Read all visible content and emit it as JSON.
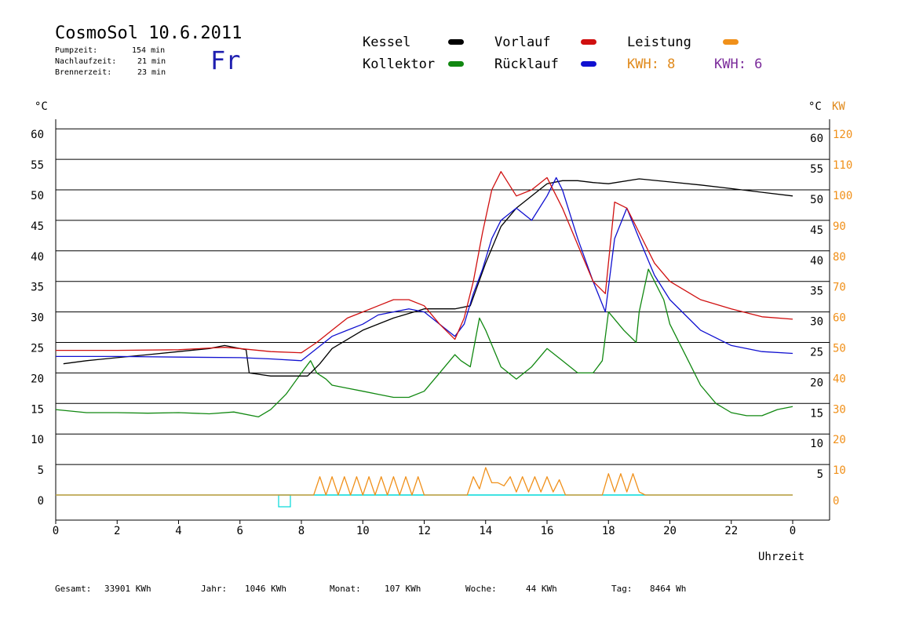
{
  "header": {
    "title": "CosmoSol 10.6.2011",
    "pumpzeit_label": "Pumpzeit:",
    "pumpzeit_value": "154 min",
    "nachlaufzeit_label": "Nachlaufzeit:",
    "nachlaufzeit_value": "21 min",
    "brennerzeit_label": "Brennerzeit:",
    "brennerzeit_value": "23 min",
    "day": "Fr"
  },
  "legend": {
    "kessel": "Kessel",
    "kollektor": "Kollektor",
    "vorlauf": "Vorlauf",
    "ruecklauf": "Rücklauf",
    "leistung": "Leistung",
    "kwh_orange": "KWH: 8",
    "kwh_purple": "KWH: 6"
  },
  "colors": {
    "kessel": "#000000",
    "kollektor": "#118811",
    "vorlauf": "#d01010",
    "ruecklauf": "#1010d0",
    "leistung": "#f0901a",
    "purple": "#7a2a9a",
    "baseline": "#00d8d8"
  },
  "axes": {
    "left_unit": "°C",
    "right_unit": "°C",
    "right_unit2": "KW",
    "xlabel": "Uhrzeit"
  },
  "footer": {
    "gesamt_label": "Gesamt:",
    "gesamt_value": "33901 KWh",
    "jahr_label": "Jahr:",
    "jahr_value": "1046 KWh",
    "monat_label": "Monat:",
    "monat_value": "107 KWh",
    "woche_label": "Woche:",
    "woche_value": "44 KWh",
    "tag_label": "Tag:",
    "tag_value": "8464 Wh"
  },
  "chart_data": {
    "type": "line",
    "xlim": [
      0,
      24
    ],
    "ylim": [
      0,
      60
    ],
    "xticks": [
      "0",
      "2",
      "4",
      "6",
      "8",
      "10",
      "12",
      "14",
      "16",
      "18",
      "20",
      "22",
      "0"
    ],
    "yticks_left": [
      "0",
      "5",
      "10",
      "15",
      "20",
      "25",
      "30",
      "35",
      "40",
      "45",
      "50",
      "55",
      "60"
    ],
    "yticks_right_c": [
      "5",
      "10",
      "15",
      "20",
      "25",
      "30",
      "35",
      "40",
      "45",
      "50",
      "55",
      "60"
    ],
    "yticks_right_kw": [
      "0",
      "10",
      "20",
      "30",
      "40",
      "50",
      "60",
      "70",
      "80",
      "90",
      "100",
      "110",
      "120"
    ],
    "grid": true,
    "series": [
      {
        "name": "Kessel",
        "color_key": "kessel",
        "x": [
          0.25,
          1,
          2,
          3,
          4,
          5,
          5.5,
          6.2,
          6.3,
          7,
          7.5,
          8.2,
          8.4,
          8.6,
          9,
          10,
          11,
          12,
          13,
          13.5,
          14,
          14.5,
          15,
          15.5,
          16,
          16.5,
          17,
          17.5,
          18,
          19,
          20,
          21,
          22,
          23,
          24
        ],
        "y": [
          21.5,
          22,
          22.5,
          23,
          23.5,
          24,
          24.5,
          23.8,
          20,
          19.5,
          19.5,
          19.5,
          20.5,
          21.5,
          24,
          27,
          29,
          30.5,
          30.5,
          31,
          38,
          44,
          47,
          49,
          51,
          51.5,
          51.5,
          51.2,
          51,
          51.8,
          51.3,
          50.8,
          50.2,
          49.6,
          49
        ]
      },
      {
        "name": "Kollektor",
        "color_key": "kollektor",
        "x": [
          0,
          1,
          2,
          3,
          4,
          5,
          5.8,
          6.6,
          7,
          7.5,
          8,
          8.3,
          8.5,
          8.8,
          9,
          9.5,
          10,
          10.5,
          11,
          11.5,
          12,
          12.5,
          13,
          13.2,
          13.5,
          13.8,
          14,
          14.5,
          15,
          15.5,
          16,
          16.5,
          17,
          17.5,
          17.8,
          18,
          18.5,
          18.9,
          19,
          19.3,
          19.8,
          20,
          20.5,
          21,
          21.5,
          22,
          22.5,
          23,
          23.5,
          24
        ],
        "y": [
          14,
          13.5,
          13.5,
          13.4,
          13.5,
          13.3,
          13.6,
          12.8,
          14,
          16.5,
          20,
          22,
          20,
          19,
          18,
          17.5,
          17,
          16.5,
          16,
          16,
          17,
          20,
          23,
          22,
          21,
          29,
          27,
          21,
          19,
          21,
          24,
          22,
          20,
          20,
          22,
          30,
          27,
          25,
          30,
          37,
          32,
          28,
          23,
          18,
          15,
          13.5,
          13,
          13,
          14,
          14.5
        ]
      },
      {
        "name": "Vorlauf",
        "color_key": "vorlauf",
        "x": [
          0,
          2,
          4,
          5.5,
          6,
          7,
          8,
          8.5,
          9,
          9.5,
          10,
          10.5,
          11,
          11.5,
          12,
          12.5,
          13,
          13.3,
          13.6,
          13.9,
          14.2,
          14.5,
          15,
          15.5,
          16,
          16.5,
          17,
          17.5,
          17.9,
          18.2,
          18.6,
          19,
          19.5,
          20,
          21,
          22,
          23,
          24
        ],
        "y": [
          23.7,
          23.7,
          23.8,
          24.2,
          24,
          23.5,
          23.3,
          25,
          27,
          29,
          30,
          31,
          32,
          32,
          31,
          28,
          25.5,
          29,
          35,
          43,
          50,
          53,
          49,
          50,
          52,
          47,
          41,
          35,
          33,
          48,
          47,
          43,
          38,
          35,
          32,
          30.5,
          29.2,
          28.8
        ]
      },
      {
        "name": "Rücklauf",
        "color_key": "ruecklauf",
        "x": [
          0,
          2,
          4,
          6,
          7,
          8,
          8.5,
          9,
          9.5,
          10,
          10.5,
          11,
          11.5,
          12,
          12.5,
          13,
          13.3,
          13.6,
          13.9,
          14.2,
          14.5,
          15,
          15.5,
          16,
          16.3,
          16.5,
          17,
          17.5,
          17.9,
          18.2,
          18.6,
          19,
          19.5,
          20,
          21,
          22,
          23,
          24
        ],
        "y": [
          22.7,
          22.7,
          22.6,
          22.5,
          22.3,
          22,
          24,
          26,
          27,
          28,
          29.5,
          30,
          30.5,
          30,
          28,
          26,
          28,
          33,
          37,
          42,
          45,
          47,
          45,
          49,
          52,
          50,
          42,
          35,
          30,
          42,
          47,
          42,
          36,
          32,
          27,
          24.5,
          23.5,
          23.2
        ]
      },
      {
        "name": "Leistung",
        "color_key": "leistung",
        "x": [
          0,
          8.4,
          8.6,
          8.8,
          9,
          9.2,
          9.4,
          9.6,
          9.8,
          10,
          10.2,
          10.4,
          10.6,
          10.8,
          11,
          11.2,
          11.4,
          11.6,
          11.8,
          12,
          12.2,
          13.4,
          13.6,
          13.8,
          14,
          14.2,
          14.4,
          14.6,
          14.8,
          15,
          15.2,
          15.4,
          15.6,
          15.8,
          16,
          16.2,
          16.4,
          16.6,
          17.8,
          18,
          18.2,
          18.4,
          18.6,
          18.8,
          19,
          19.2,
          24
        ],
        "y": [
          0,
          0,
          3,
          0,
          3,
          0,
          3,
          0,
          3,
          0,
          3,
          0,
          3,
          0,
          3,
          0,
          3,
          0,
          3,
          0,
          0,
          0,
          3,
          1,
          4.5,
          2,
          2,
          1.5,
          3,
          0.5,
          3,
          0.5,
          3,
          0.5,
          3,
          0.5,
          2.5,
          0,
          0,
          3.5,
          0.5,
          3.5,
          0.5,
          3.5,
          0.5,
          0,
          0
        ]
      }
    ]
  }
}
